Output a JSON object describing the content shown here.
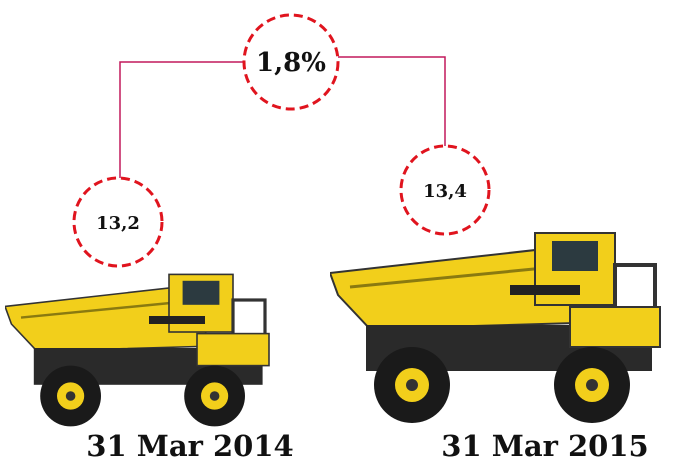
{
  "growth": {
    "label": "1,8%"
  },
  "left": {
    "value": "13,2",
    "date": "31 Mar 2014"
  },
  "right": {
    "value": "13,4",
    "date": "31 Mar 2015"
  }
}
